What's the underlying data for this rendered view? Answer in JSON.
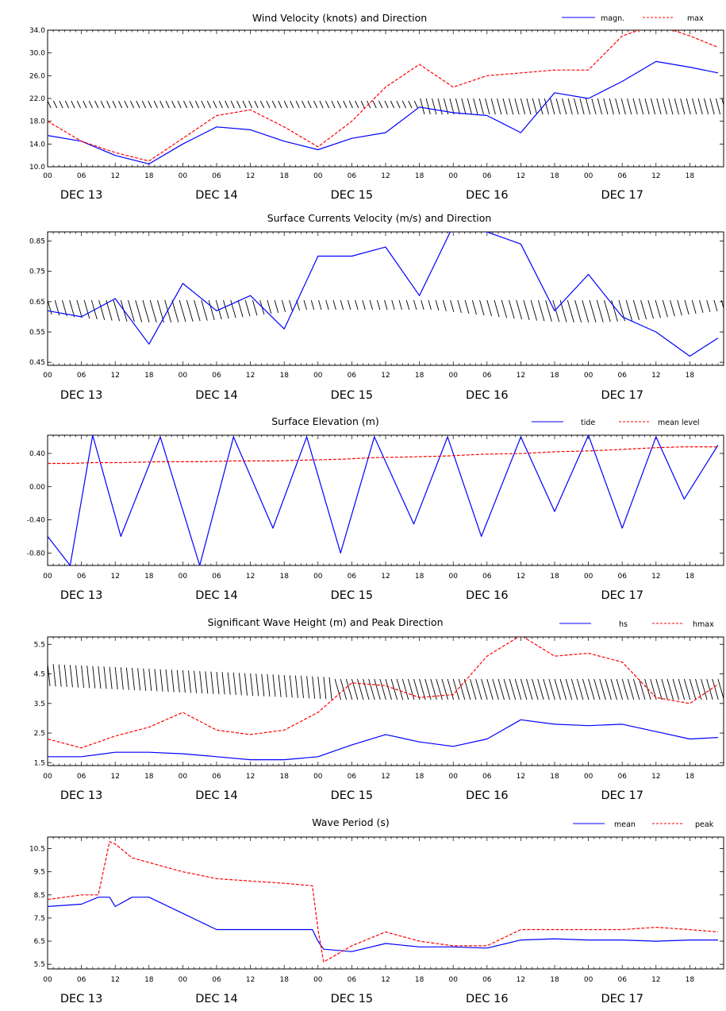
{
  "x_axis": {
    "hour_ticks": [
      "00",
      "06",
      "12",
      "18",
      "00",
      "06",
      "12",
      "18",
      "00",
      "06",
      "12",
      "18",
      "00",
      "06",
      "12",
      "18",
      "00",
      "06",
      "12",
      "18"
    ],
    "day_labels": [
      "DEC 13",
      "DEC 14",
      "DEC 15",
      "DEC 16",
      "DEC 17"
    ]
  },
  "colors": {
    "series1": "#0000ff",
    "series2": "#ff0000",
    "arrows": "#000000"
  },
  "chart_data": [
    {
      "type": "line",
      "title": "Wind Velocity (knots) and Direction",
      "ylim": [
        10.0,
        34.0
      ],
      "yticks": [
        "10.0",
        "14.0",
        "18.0",
        "22.0",
        "26.0",
        "30.0",
        "34.0"
      ],
      "direction_arrows": true,
      "x": [
        0,
        6,
        12,
        18,
        24,
        30,
        36,
        42,
        48,
        54,
        60,
        66,
        72,
        78,
        84,
        90,
        96,
        102,
        108,
        114,
        119
      ],
      "series": [
        {
          "name": "magn.",
          "style": "solid",
          "values": [
            15.5,
            14.5,
            12,
            10.5,
            14,
            17,
            16.5,
            14.5,
            13,
            15,
            16,
            20.5,
            19.5,
            19,
            16,
            23,
            22,
            25,
            28.5,
            27.5,
            26.5
          ]
        },
        {
          "name": "max",
          "style": "dashed",
          "values": [
            18,
            14.5,
            12.5,
            11,
            15,
            19,
            20,
            17,
            13.5,
            18,
            24,
            28,
            24,
            26,
            26.5,
            27,
            27,
            33,
            35,
            33,
            31
          ]
        }
      ]
    },
    {
      "type": "line",
      "title": "Surface Currents Velocity (m/s) and Direction",
      "ylim": [
        0.45,
        0.85
      ],
      "yticks": [
        "0.45",
        "0.55",
        "0.65",
        "0.75",
        "0.85"
      ],
      "direction_arrows": true,
      "x": [
        0,
        6,
        12,
        18,
        24,
        30,
        36,
        42,
        48,
        54,
        60,
        66,
        72,
        78,
        84,
        90,
        96,
        102,
        108,
        114,
        119
      ],
      "series": [
        {
          "name": "",
          "style": "solid",
          "values": [
            0.62,
            0.6,
            0.66,
            0.51,
            0.71,
            0.62,
            0.67,
            0.56,
            0.8,
            0.8,
            0.83,
            0.67,
            0.9,
            0.88,
            0.84,
            0.62,
            0.74,
            0.6,
            0.55,
            0.47,
            0.53
          ]
        }
      ]
    },
    {
      "type": "line",
      "title": "Surface Elevation (m)",
      "ylim": [
        -0.8,
        0.4
      ],
      "yticks": [
        "-0.80",
        "-0.40",
        "0.00",
        "0.40"
      ],
      "x": [
        0,
        4,
        8,
        13,
        20,
        27,
        33,
        40,
        46,
        52,
        58,
        65,
        71,
        77,
        84,
        90,
        96,
        102,
        108,
        113,
        119
      ],
      "series": [
        {
          "name": "tide",
          "style": "solid",
          "values": [
            -0.6,
            -0.95,
            0.62,
            -0.6,
            0.6,
            -0.95,
            0.6,
            -0.5,
            0.6,
            -0.8,
            0.6,
            -0.45,
            0.6,
            -0.6,
            0.6,
            -0.3,
            0.62,
            -0.5,
            0.6,
            -0.15,
            0.5
          ]
        },
        {
          "name": "mean level",
          "style": "dashed",
          "values": [
            0.28,
            0.28,
            0.29,
            0.29,
            0.3,
            0.3,
            0.31,
            0.31,
            0.32,
            0.33,
            0.35,
            0.36,
            0.37,
            0.39,
            0.4,
            0.42,
            0.43,
            0.45,
            0.47,
            0.48,
            0.48
          ]
        }
      ]
    },
    {
      "type": "line",
      "title": "Significant Wave Height (m) and Peak Direction",
      "ylim": [
        1.5,
        5.5
      ],
      "yticks": [
        "1.5",
        "2.5",
        "3.5",
        "4.5",
        "5.5"
      ],
      "direction_arrows": true,
      "x": [
        0,
        6,
        12,
        18,
        24,
        30,
        36,
        42,
        48,
        54,
        60,
        66,
        72,
        78,
        84,
        90,
        96,
        102,
        108,
        114,
        119
      ],
      "series": [
        {
          "name": "hs",
          "style": "solid",
          "values": [
            1.7,
            1.7,
            1.85,
            1.85,
            1.8,
            1.7,
            1.6,
            1.6,
            1.7,
            2.1,
            2.45,
            2.2,
            2.05,
            2.3,
            2.95,
            2.8,
            2.75,
            2.8,
            2.55,
            2.3,
            2.35
          ]
        },
        {
          "name": "hmax",
          "style": "dashed",
          "values": [
            2.3,
            2.0,
            2.4,
            2.7,
            3.2,
            2.6,
            2.45,
            2.6,
            3.2,
            4.2,
            4.1,
            3.7,
            3.8,
            5.1,
            5.8,
            5.1,
            5.2,
            4.9,
            3.7,
            3.5,
            4.15
          ]
        }
      ]
    },
    {
      "type": "line",
      "title": "Wave Period (s)",
      "ylim": [
        5.5,
        10.5
      ],
      "yticks": [
        "5.5",
        "6.5",
        "7.5",
        "8.5",
        "9.5",
        "10.5"
      ],
      "x": [
        0,
        6,
        9,
        11,
        12,
        15,
        18,
        24,
        30,
        36,
        42,
        47,
        48,
        49,
        54,
        60,
        66,
        72,
        78,
        84,
        90,
        96,
        102,
        108,
        114,
        119
      ],
      "series": [
        {
          "name": "mean",
          "style": "solid",
          "values": [
            8,
            8.1,
            8.4,
            8.4,
            8.0,
            8.4,
            8.4,
            7.7,
            7.0,
            7.0,
            7.0,
            7.0,
            6.5,
            6.15,
            6.05,
            6.4,
            6.25,
            6.25,
            6.2,
            6.55,
            6.6,
            6.55,
            6.55,
            6.5,
            6.55,
            6.55
          ]
        },
        {
          "name": "peak",
          "style": "dashed",
          "values": [
            8.3,
            8.5,
            8.5,
            10.8,
            10.7,
            10.1,
            9.9,
            9.5,
            9.2,
            9.1,
            9.0,
            8.9,
            7.0,
            5.6,
            6.3,
            6.9,
            6.5,
            6.3,
            6.3,
            7.0,
            7.0,
            7.0,
            7.0,
            7.1,
            7.0,
            6.9
          ]
        }
      ]
    }
  ]
}
